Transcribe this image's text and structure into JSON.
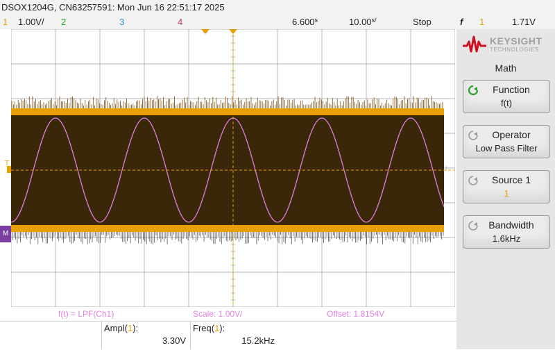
{
  "header": {
    "title": "DSOX1204G, CN63257591: Mon Jun 16 22:51:17 2025"
  },
  "channels": {
    "ch1_num": "1",
    "ch1_scale": "1.00V/",
    "ch2_num": "2",
    "ch3_num": "3",
    "ch4_num": "4",
    "time_delay": "6.600",
    "time_delay_unit": "s",
    "time_scale": "10.00",
    "time_scale_unit": "s/",
    "run_state": "Stop",
    "trigger_symbol": "f",
    "trigger_source": "1",
    "trigger_level": "1.71V"
  },
  "brand": {
    "name": "KEYSIGHT",
    "sub": "TECHNOLOGIES"
  },
  "menu": {
    "title": "Math",
    "keys": [
      {
        "label": "Function",
        "value": "f(t)"
      },
      {
        "label": "Operator",
        "value": "Low Pass Filter"
      },
      {
        "label": "Source 1",
        "value": "1"
      },
      {
        "label": "Bandwidth",
        "value": "1.6kHz"
      }
    ]
  },
  "math_info": {
    "function": "f(t) = LPF(Ch1)",
    "scale": "Scale: 1.00V/",
    "offset": "Offset: 1.8154V"
  },
  "measurements": [
    {
      "name": "Ampl(",
      "src": "1",
      "close": "):",
      "value": "3.30V"
    },
    {
      "name": "Freq(",
      "src": "1",
      "close": "):",
      "value": "15.2kHz"
    }
  ],
  "markers": {
    "trigger_level_marker": "T",
    "math_marker": "M"
  },
  "colors": {
    "ch1": "#e8a000",
    "ch2": "#22aa22",
    "ch3": "#3399cc",
    "ch4": "#cc3377",
    "math": "#e080e0",
    "grid": "#aaaaaa"
  }
}
